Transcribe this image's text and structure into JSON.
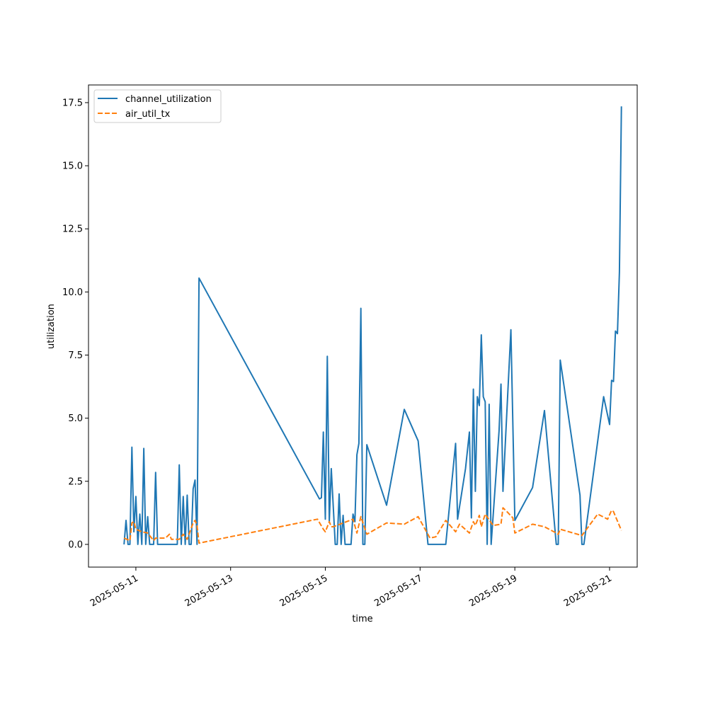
{
  "chart_data": {
    "type": "line",
    "title": "",
    "xlabel": "time",
    "ylabel": "utilization",
    "xlim": [
      "2025-05-10T00:00",
      "2025-05-21T14:00"
    ],
    "ylim": [
      -0.9,
      18.2
    ],
    "x_ticks": [
      "2025-05-11",
      "2025-05-13",
      "2025-05-15",
      "2025-05-17",
      "2025-05-19",
      "2025-05-21"
    ],
    "y_ticks": [
      "0.0",
      "2.5",
      "5.0",
      "7.5",
      "10.0",
      "12.5",
      "15.0",
      "17.5"
    ],
    "grid": false,
    "legend_position": "upper left",
    "series": [
      {
        "name": "channel_utilization",
        "color": "#1f77b4",
        "style": "solid",
        "points": [
          [
            "2025-05-10T18:00",
            0.0
          ],
          [
            "2025-05-10T19:00",
            0.95
          ],
          [
            "2025-05-10T20:00",
            0.0
          ],
          [
            "2025-05-10T21:00",
            0.0
          ],
          [
            "2025-05-10T22:00",
            3.85
          ],
          [
            "2025-05-10T23:00",
            0.5
          ],
          [
            "2025-05-11T00:00",
            1.9
          ],
          [
            "2025-05-11T01:00",
            0.0
          ],
          [
            "2025-05-11T02:00",
            1.2
          ],
          [
            "2025-05-11T03:00",
            0.0
          ],
          [
            "2025-05-11T04:00",
            3.8
          ],
          [
            "2025-05-11T05:00",
            0.0
          ],
          [
            "2025-05-11T06:00",
            1.1
          ],
          [
            "2025-05-11T07:00",
            0.0
          ],
          [
            "2025-05-11T09:00",
            0.0
          ],
          [
            "2025-05-11T10:00",
            2.85
          ],
          [
            "2025-05-11T11:00",
            0.0
          ],
          [
            "2025-05-11T20:00",
            0.0
          ],
          [
            "2025-05-11T21:00",
            0.0
          ],
          [
            "2025-05-11T22:00",
            3.15
          ],
          [
            "2025-05-11T23:00",
            0.0
          ],
          [
            "2025-05-12T00:00",
            1.9
          ],
          [
            "2025-05-12T01:00",
            0.0
          ],
          [
            "2025-05-12T02:00",
            1.95
          ],
          [
            "2025-05-12T03:00",
            0.0
          ],
          [
            "2025-05-12T04:00",
            0.0
          ],
          [
            "2025-05-12T05:00",
            2.2
          ],
          [
            "2025-05-12T06:00",
            2.55
          ],
          [
            "2025-05-12T07:00",
            0.0
          ],
          [
            "2025-05-12T08:00",
            10.55
          ],
          [
            "2025-05-14T21:00",
            1.8
          ],
          [
            "2025-05-14T22:00",
            1.85
          ],
          [
            "2025-05-14T23:00",
            4.45
          ],
          [
            "2025-05-15T00:00",
            1.0
          ],
          [
            "2025-05-15T01:00",
            7.45
          ],
          [
            "2025-05-15T02:00",
            0.9
          ],
          [
            "2025-05-15T03:00",
            3.0
          ],
          [
            "2025-05-15T04:00",
            1.5
          ],
          [
            "2025-05-15T05:00",
            0.0
          ],
          [
            "2025-05-15T06:00",
            0.0
          ],
          [
            "2025-05-15T07:00",
            2.0
          ],
          [
            "2025-05-15T08:00",
            0.0
          ],
          [
            "2025-05-15T09:00",
            1.15
          ],
          [
            "2025-05-15T10:00",
            0.0
          ],
          [
            "2025-05-15T13:00",
            0.0
          ],
          [
            "2025-05-15T14:00",
            1.2
          ],
          [
            "2025-05-15T15:00",
            0.9
          ],
          [
            "2025-05-15T16:00",
            3.55
          ],
          [
            "2025-05-15T17:00",
            4.0
          ],
          [
            "2025-05-15T18:00",
            9.35
          ],
          [
            "2025-05-15T19:00",
            0.0
          ],
          [
            "2025-05-15T20:00",
            0.0
          ],
          [
            "2025-05-15T21:00",
            3.95
          ],
          [
            "2025-05-16T07:00",
            1.55
          ],
          [
            "2025-05-16T16:00",
            5.35
          ],
          [
            "2025-05-16T23:00",
            4.1
          ],
          [
            "2025-05-17T04:00",
            0.0
          ],
          [
            "2025-05-17T13:00",
            0.0
          ],
          [
            "2025-05-17T18:00",
            4.0
          ],
          [
            "2025-05-17T19:00",
            1.0
          ],
          [
            "2025-05-17T23:00",
            3.0
          ],
          [
            "2025-05-18T01:00",
            4.45
          ],
          [
            "2025-05-18T02:00",
            1.05
          ],
          [
            "2025-05-18T03:00",
            6.15
          ],
          [
            "2025-05-18T04:00",
            2.1
          ],
          [
            "2025-05-18T05:00",
            5.85
          ],
          [
            "2025-05-18T06:00",
            5.5
          ],
          [
            "2025-05-18T07:00",
            8.3
          ],
          [
            "2025-05-18T08:00",
            5.85
          ],
          [
            "2025-05-18T09:00",
            5.65
          ],
          [
            "2025-05-18T10:00",
            0.0
          ],
          [
            "2025-05-18T11:00",
            5.55
          ],
          [
            "2025-05-18T12:00",
            0.0
          ],
          [
            "2025-05-18T16:00",
            4.5
          ],
          [
            "2025-05-18T17:00",
            6.35
          ],
          [
            "2025-05-18T18:00",
            2.1
          ],
          [
            "2025-05-18T22:00",
            8.5
          ],
          [
            "2025-05-19T00:00",
            0.95
          ],
          [
            "2025-05-19T09:00",
            2.25
          ],
          [
            "2025-05-19T15:00",
            5.3
          ],
          [
            "2025-05-19T21:00",
            0.0
          ],
          [
            "2025-05-19T22:00",
            0.0
          ],
          [
            "2025-05-19T23:00",
            7.3
          ],
          [
            "2025-05-20T09:00",
            1.95
          ],
          [
            "2025-05-20T10:00",
            0.0
          ],
          [
            "2025-05-20T11:00",
            0.0
          ],
          [
            "2025-05-20T14:00",
            1.75
          ],
          [
            "2025-05-20T21:00",
            5.85
          ],
          [
            "2025-05-21T00:00",
            4.75
          ],
          [
            "2025-05-21T01:00",
            6.5
          ],
          [
            "2025-05-21T02:00",
            6.45
          ],
          [
            "2025-05-21T03:00",
            8.45
          ],
          [
            "2025-05-21T04:00",
            8.35
          ],
          [
            "2025-05-21T05:00",
            10.8
          ],
          [
            "2025-05-21T06:00",
            17.35
          ]
        ]
      },
      {
        "name": "air_util_tx",
        "color": "#ff7f0e",
        "style": "dashed",
        "points": [
          [
            "2025-05-10T18:00",
            0.25
          ],
          [
            "2025-05-10T21:00",
            0.15
          ],
          [
            "2025-05-10T22:00",
            0.85
          ],
          [
            "2025-05-10T23:00",
            0.9
          ],
          [
            "2025-05-11T00:00",
            0.6
          ],
          [
            "2025-05-11T03:00",
            0.5
          ],
          [
            "2025-05-11T06:00",
            0.45
          ],
          [
            "2025-05-11T09:00",
            0.15
          ],
          [
            "2025-05-11T10:00",
            0.25
          ],
          [
            "2025-05-11T15:00",
            0.25
          ],
          [
            "2025-05-11T17:00",
            0.4
          ],
          [
            "2025-05-11T18:00",
            0.2
          ],
          [
            "2025-05-11T22:00",
            0.2
          ],
          [
            "2025-05-12T00:00",
            0.4
          ],
          [
            "2025-05-12T02:00",
            0.2
          ],
          [
            "2025-05-12T05:00",
            0.85
          ],
          [
            "2025-05-12T06:00",
            0.95
          ],
          [
            "2025-05-12T07:00",
            0.75
          ],
          [
            "2025-05-12T08:00",
            0.05
          ],
          [
            "2025-05-14T20:00",
            1.0
          ],
          [
            "2025-05-14T23:00",
            0.6
          ],
          [
            "2025-05-15T00:00",
            0.5
          ],
          [
            "2025-05-15T02:00",
            0.9
          ],
          [
            "2025-05-15T03:00",
            0.7
          ],
          [
            "2025-05-15T04:00",
            0.7
          ],
          [
            "2025-05-15T14:00",
            1.0
          ],
          [
            "2025-05-15T16:00",
            0.45
          ],
          [
            "2025-05-15T18:00",
            1.1
          ],
          [
            "2025-05-15T21:00",
            0.4
          ],
          [
            "2025-05-16T07:00",
            0.85
          ],
          [
            "2025-05-16T16:00",
            0.8
          ],
          [
            "2025-05-16T23:00",
            1.1
          ],
          [
            "2025-05-17T05:00",
            0.25
          ],
          [
            "2025-05-17T08:00",
            0.3
          ],
          [
            "2025-05-17T13:00",
            0.95
          ],
          [
            "2025-05-17T18:00",
            0.5
          ],
          [
            "2025-05-17T20:00",
            0.8
          ],
          [
            "2025-05-18T01:00",
            0.45
          ],
          [
            "2025-05-18T03:00",
            0.9
          ],
          [
            "2025-05-18T04:00",
            0.75
          ],
          [
            "2025-05-18T06:00",
            1.15
          ],
          [
            "2025-05-18T07:00",
            0.7
          ],
          [
            "2025-05-18T09:00",
            1.2
          ],
          [
            "2025-05-18T13:00",
            0.75
          ],
          [
            "2025-05-18T17:00",
            0.8
          ],
          [
            "2025-05-18T18:00",
            1.45
          ],
          [
            "2025-05-18T20:00",
            1.3
          ],
          [
            "2025-05-18T23:00",
            1.05
          ],
          [
            "2025-05-19T00:00",
            0.45
          ],
          [
            "2025-05-19T09:00",
            0.8
          ],
          [
            "2025-05-19T15:00",
            0.7
          ],
          [
            "2025-05-19T21:00",
            0.45
          ],
          [
            "2025-05-19T22:00",
            0.4
          ],
          [
            "2025-05-19T23:00",
            0.6
          ],
          [
            "2025-05-20T10:00",
            0.35
          ],
          [
            "2025-05-20T18:00",
            1.2
          ],
          [
            "2025-05-20T23:00",
            1.0
          ],
          [
            "2025-05-21T01:00",
            1.35
          ],
          [
            "2025-05-21T02:00",
            1.3
          ],
          [
            "2025-05-21T06:00",
            0.55
          ]
        ]
      }
    ]
  }
}
